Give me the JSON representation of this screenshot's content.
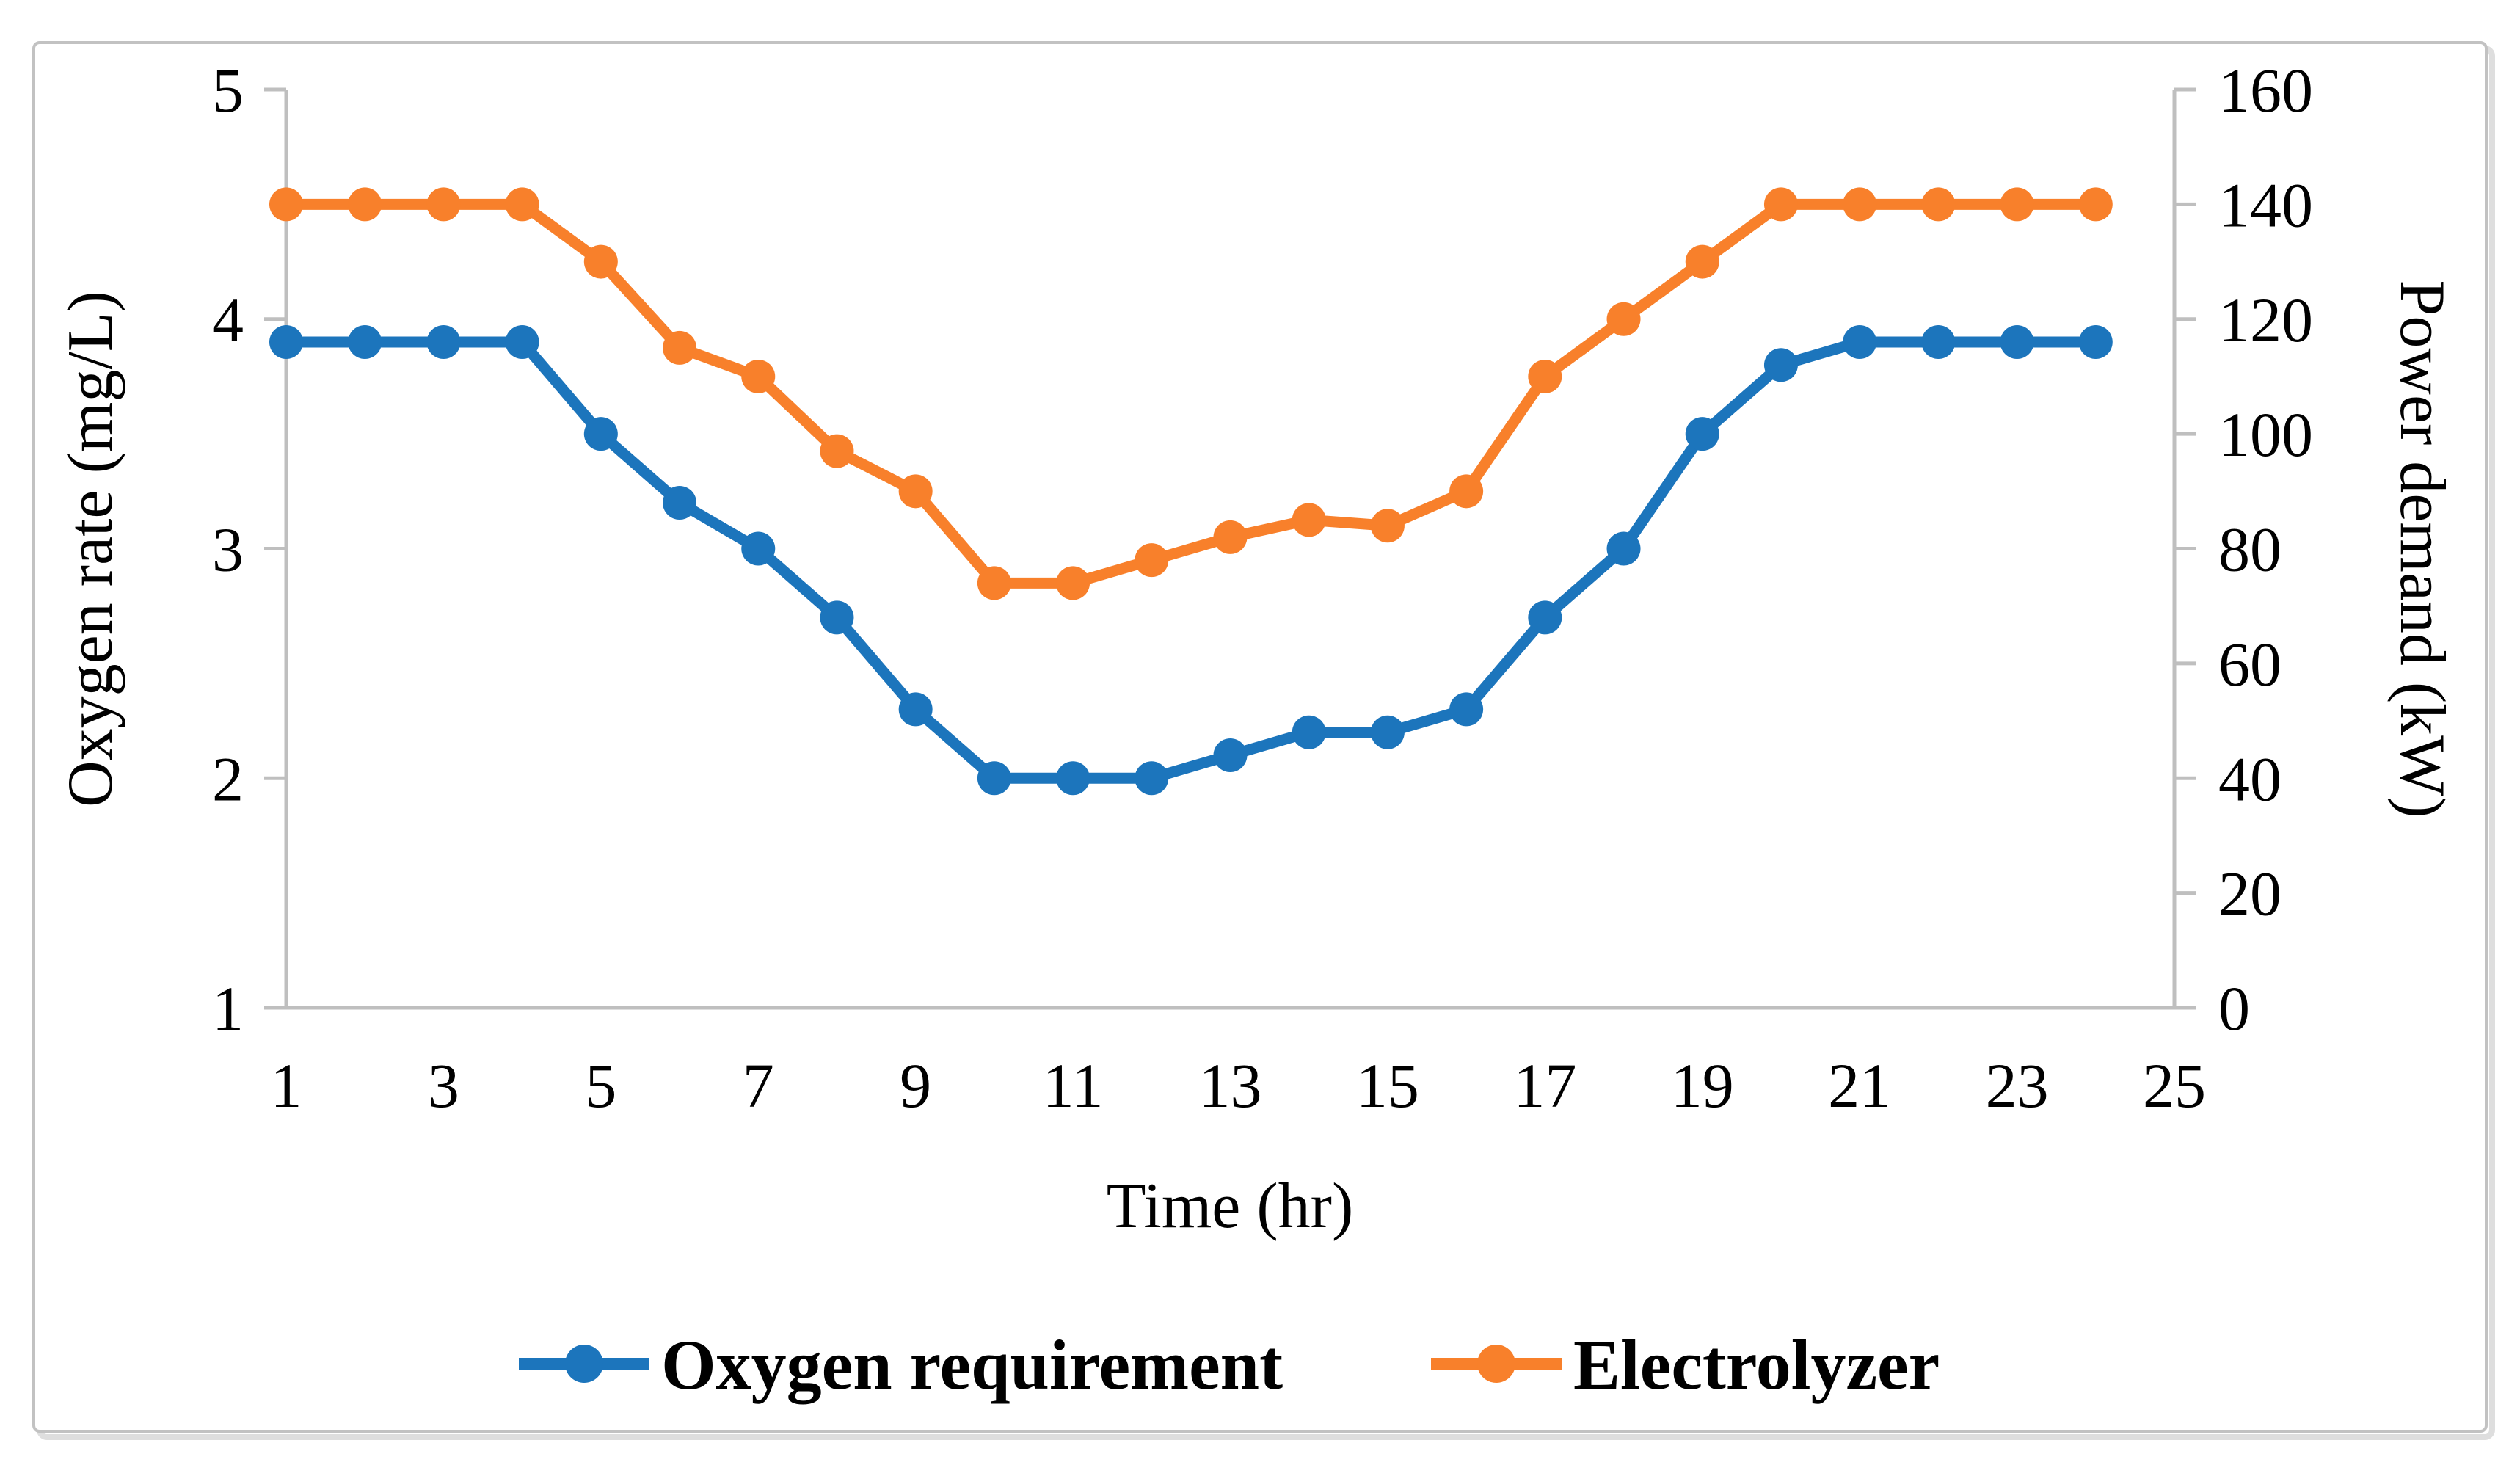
{
  "figure": {
    "background": "#ffffff",
    "border_color": "#c2c2c2",
    "axis_color": "#bfbfbf",
    "text_color": "#000000"
  },
  "chart_data": {
    "type": "line",
    "title": "",
    "x_label": "Time (hr)",
    "x_range": [
      1,
      25
    ],
    "x_ticks": [
      1,
      3,
      5,
      7,
      9,
      11,
      13,
      15,
      17,
      19,
      21,
      23,
      25
    ],
    "hours": [
      1,
      2,
      3,
      4,
      5,
      6,
      7,
      8,
      9,
      10,
      11,
      12,
      13,
      14,
      15,
      16,
      17,
      18,
      19,
      20,
      21,
      22,
      23,
      24
    ],
    "left_axis": {
      "label": "Oxygen rate (mg/L)",
      "range": [
        1,
        5
      ],
      "ticks": [
        1,
        2,
        3,
        4,
        5
      ]
    },
    "right_axis": {
      "label": "Power demand (kW)",
      "range": [
        0,
        160
      ],
      "ticks": [
        0,
        20,
        40,
        60,
        80,
        100,
        120,
        140,
        160
      ]
    },
    "grid": "off",
    "legend_position": "bottom",
    "series": [
      {
        "name": "Oxygen requirement",
        "axis": "left",
        "color": "#1c75bc",
        "marker": "circle",
        "values": [
          3.9,
          3.9,
          3.9,
          3.9,
          3.5,
          3.2,
          3.0,
          2.7,
          2.3,
          2.0,
          2.0,
          2.0,
          2.1,
          2.2,
          2.2,
          2.3,
          2.7,
          3.0,
          3.5,
          3.8,
          3.9,
          3.9,
          3.9,
          3.9
        ]
      },
      {
        "name": "Electrolyzer",
        "axis": "right",
        "color": "#f8802b",
        "marker": "circle",
        "values": [
          140,
          140,
          140,
          140,
          130,
          115,
          110,
          97,
          90,
          74,
          74,
          78,
          82,
          85,
          84,
          90,
          110,
          120,
          130,
          140,
          140,
          140,
          140,
          140
        ]
      }
    ]
  }
}
